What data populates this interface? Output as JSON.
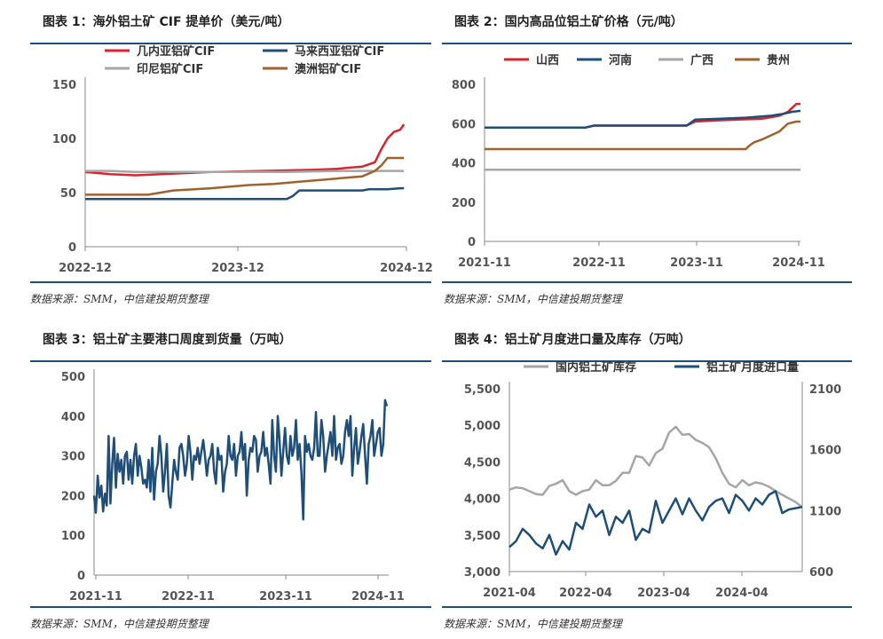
{
  "source_text": "数据来源：SMM，中信建投期货整理",
  "charts": [
    {
      "title": "图表 1：海外铝土矿 CIF 提单价（美元/吨）",
      "chart_data": {
        "type": "line",
        "title": "海外铝土矿CIF提单价（美元/吨）",
        "x_ticks": [
          "2022-12",
          "2023-12",
          "2024-12"
        ],
        "ylim": [
          0,
          150
        ],
        "y_ticks": [
          "0",
          "50",
          "100",
          "150"
        ],
        "x_range": [
          0,
          25.5
        ],
        "series": [
          {
            "name": "几内亚铝矿CIF",
            "color": "#d9242c",
            "points": [
              [
                0,
                69
              ],
              [
                1,
                68
              ],
              [
                2,
                67
              ],
              [
                4,
                66
              ],
              [
                6,
                67
              ],
              [
                8,
                68
              ],
              [
                10,
                69
              ],
              [
                14,
                70
              ],
              [
                18,
                71
              ],
              [
                20,
                72
              ],
              [
                21,
                73
              ],
              [
                22,
                74
              ],
              [
                23,
                78
              ],
              [
                23.5,
                90
              ],
              [
                24,
                100
              ],
              [
                24.5,
                106
              ],
              [
                25,
                108
              ],
              [
                25.3,
                113
              ]
            ]
          },
          {
            "name": "马来西亚铝矿CIF",
            "color": "#1f4e79",
            "points": [
              [
                0,
                44
              ],
              [
                8,
                44
              ],
              [
                16,
                44
              ],
              [
                16.5,
                47
              ],
              [
                17,
                52
              ],
              [
                22,
                52
              ],
              [
                22.5,
                53
              ],
              [
                24,
                53
              ],
              [
                25,
                54
              ],
              [
                25.3,
                54
              ]
            ]
          },
          {
            "name": "印尼铝矿CIF",
            "color": "#a6a6a6",
            "points": [
              [
                0,
                70
              ],
              [
                2,
                70
              ],
              [
                4,
                69
              ],
              [
                6,
                69
              ],
              [
                8,
                69
              ],
              [
                12,
                69
              ],
              [
                16,
                69
              ],
              [
                20,
                70
              ],
              [
                22,
                70
              ],
              [
                23,
                70
              ],
              [
                24,
                70
              ],
              [
                25.3,
                70
              ]
            ]
          },
          {
            "name": "澳洲铝矿CIF",
            "color": "#a0612c",
            "points": [
              [
                0,
                48
              ],
              [
                5,
                48
              ],
              [
                7,
                52
              ],
              [
                10,
                54
              ],
              [
                13,
                57
              ],
              [
                15,
                58
              ],
              [
                17,
                60
              ],
              [
                19,
                62
              ],
              [
                21,
                64
              ],
              [
                22,
                65
              ],
              [
                23,
                70
              ],
              [
                23.5,
                75
              ],
              [
                24,
                82
              ],
              [
                25.3,
                82
              ]
            ]
          }
        ]
      }
    },
    {
      "title": "图表 2：国内高品位铝土矿价格（元/吨）",
      "chart_data": {
        "type": "line",
        "title": "国内高品位铝土矿价格（元/吨）",
        "x_ticks": [
          "2021-11",
          "2022-11",
          "2023-11",
          "2024-11"
        ],
        "ylim": [
          0,
          800
        ],
        "y_ticks": [
          "0",
          "200",
          "400",
          "600",
          "800"
        ],
        "x_range": [
          0,
          37.5
        ],
        "series": [
          {
            "name": "山西",
            "color": "#d9242c",
            "points": [
              [
                0,
                580
              ],
              [
                12,
                580
              ],
              [
                13,
                590
              ],
              [
                24,
                590
              ],
              [
                25,
                610
              ],
              [
                27,
                615
              ],
              [
                30,
                620
              ],
              [
                33,
                625
              ],
              [
                35,
                640
              ],
              [
                36,
                660
              ],
              [
                37,
                700
              ],
              [
                37.5,
                700
              ]
            ]
          },
          {
            "name": "河南",
            "color": "#1f4e79",
            "points": [
              [
                0,
                580
              ],
              [
                12,
                580
              ],
              [
                13,
                590
              ],
              [
                24,
                590
              ],
              [
                25,
                620
              ],
              [
                28,
                625
              ],
              [
                31,
                630
              ],
              [
                34,
                640
              ],
              [
                35.5,
                650
              ],
              [
                36.5,
                660
              ],
              [
                37.5,
                665
              ]
            ]
          },
          {
            "name": "广西",
            "color": "#a6a6a6",
            "points": [
              [
                0,
                365
              ],
              [
                37.5,
                365
              ]
            ]
          },
          {
            "name": "贵州",
            "color": "#a0612c",
            "points": [
              [
                0,
                470
              ],
              [
                12,
                470
              ],
              [
                24,
                470
              ],
              [
                31,
                470
              ],
              [
                31.5,
                490
              ],
              [
                32,
                505
              ],
              [
                33,
                520
              ],
              [
                34,
                540
              ],
              [
                35,
                560
              ],
              [
                36,
                600
              ],
              [
                37,
                610
              ],
              [
                37.5,
                610
              ]
            ]
          }
        ]
      }
    },
    {
      "title": "图表 3：铝土矿主要港口周度到货量（万吨）",
      "chart_data": {
        "type": "line",
        "title": "铝土矿主要港口周度到货量（万吨）",
        "x_ticks": [
          "2021-11",
          "2022-11",
          "2023-11",
          "2024-11"
        ],
        "ylim": [
          0,
          500
        ],
        "y_ticks": [
          "0",
          "100",
          "200",
          "300",
          "400",
          "500"
        ],
        "x_range": [
          0,
          162
        ],
        "series": [
          {
            "name": "周度到货量",
            "color": "#1f4e79",
            "values": [
              200,
              157,
              250,
              195,
              225,
              160,
              205,
              175,
              350,
              180,
              280,
              345,
              220,
              305,
              260,
              290,
              230,
              300,
              310,
              240,
              290,
              230,
              300,
              330,
              250,
              300,
              270,
              230,
              240,
              220,
              290,
              210,
              320,
              190,
              260,
              280,
              350,
              300,
              210,
              260,
              330,
              200,
              170,
              230,
              290,
              260,
              240,
              320,
              330,
              300,
              250,
              280,
              350,
              310,
              240,
              300,
              290,
              320,
              280,
              310,
              340,
              300,
              250,
              290,
              300,
              330,
              260,
              230,
              320,
              290,
              300,
              210,
              260,
              280,
              350,
              300,
              290,
              330,
              250,
              300,
              310,
              360,
              290,
              330,
              200,
              290,
              320,
              310,
              350,
              340,
              260,
              300,
              310,
              360,
              300,
              320,
              280,
              230,
              390,
              300,
              260,
              400,
              340,
              250,
              310,
              370,
              300,
              280,
              350,
              300,
              320,
              390,
              290,
              330,
              260,
              140,
              350,
              310,
              330,
              300,
              290,
              320,
              410,
              300,
              300,
              390,
              350,
              260,
              300,
              330,
              360,
              300,
              400,
              290,
              320,
              330,
              280,
              300,
              360,
              390,
              350,
              400,
              250,
              320,
              370,
              280,
              310,
              350,
              380,
              300,
              230,
              330,
              350,
              390,
              300,
              330,
              360,
              370,
              300,
              330,
              440,
              425
            ]
          }
        ]
      }
    },
    {
      "title": "图表 4：铝土矿月度进口量及库存（万吨）",
      "chart_data": {
        "type": "line",
        "title": "铝土矿月度进口量及库存（万吨）",
        "x_ticks": [
          "2021-04",
          "2022-04",
          "2023-04",
          "2024-04"
        ],
        "ylim_left": [
          3000,
          5500
        ],
        "y_ticks_left": [
          "3,000",
          "3,500",
          "4,000",
          "4,500",
          "5,000",
          "5,500"
        ],
        "ylim_right": [
          600,
          2100
        ],
        "y_ticks_right": [
          "600",
          "1100",
          "1600",
          "2100"
        ],
        "x_range": [
          0,
          44
        ],
        "series": [
          {
            "name": "国内铝土矿库存",
            "axis": "left",
            "color": "#a6a6a6",
            "values": [
              4120,
              4150,
              4140,
              4100,
              4060,
              4050,
              4170,
              4200,
              4250,
              4100,
              4050,
              4100,
              4120,
              4250,
              4180,
              4180,
              4240,
              4350,
              4350,
              4580,
              4560,
              4450,
              4620,
              4680,
              4900,
              4980,
              4870,
              4880,
              4800,
              4760,
              4700,
              4550,
              4350,
              4200,
              4150,
              4250,
              4180,
              4220,
              4200,
              4160,
              4100,
              4050,
              4000,
              3950,
              3880
            ]
          },
          {
            "name": "铝土矿月度进口量",
            "axis": "right",
            "color": "#1f4e79",
            "values": [
              800,
              850,
              950,
              900,
              830,
              790,
              900,
              740,
              850,
              780,
              1000,
              950,
              1150,
              1050,
              1100,
              900,
              1050,
              1000,
              1100,
              860,
              950,
              920,
              1180,
              1000,
              1100,
              1200,
              1070,
              1200,
              1100,
              1020,
              1130,
              1180,
              1200,
              1080,
              1230,
              1180,
              1100,
              1200,
              1150,
              1230,
              1260,
              1080,
              1110,
              1120,
              1130
            ]
          }
        ]
      }
    }
  ]
}
